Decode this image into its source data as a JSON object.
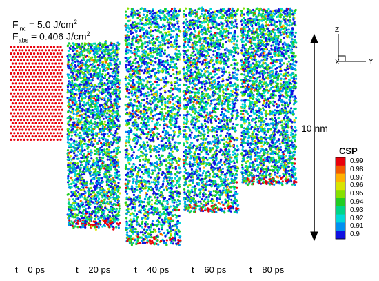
{
  "fluence": {
    "incident_symbol": "F",
    "incident_sub": "inc",
    "incident_value": " = 5.0 J/cm",
    "incident_exp": "2",
    "absorbed_symbol": "F",
    "absorbed_sub": "abs",
    "absorbed_value": " = 0.406 J/cm",
    "absorbed_exp": "2"
  },
  "snapshots": [
    {
      "label": "t =   0 ps",
      "state": "crystal"
    },
    {
      "label": "t = 20 ps",
      "state": "melted"
    },
    {
      "label": "t = 40 ps",
      "state": "melted"
    },
    {
      "label": "t = 60 ps",
      "state": "melted"
    },
    {
      "label": "t = 80 ps",
      "state": "melted"
    }
  ],
  "scale_bar": {
    "label": "10 nm"
  },
  "axes": {
    "z": "Z",
    "x": "X",
    "y": "Y"
  },
  "legend": {
    "title": "CSP",
    "entries": [
      {
        "value": "0.99",
        "color": "#e8000b"
      },
      {
        "value": "0.98",
        "color": "#f25a00"
      },
      {
        "value": "0.97",
        "color": "#ffb000"
      },
      {
        "value": "0.96",
        "color": "#d8e400"
      },
      {
        "value": "0.95",
        "color": "#86e000"
      },
      {
        "value": "0.94",
        "color": "#22cc22"
      },
      {
        "value": "0.93",
        "color": "#00d488"
      },
      {
        "value": "0.92",
        "color": "#00d8d8"
      },
      {
        "value": "0.91",
        "color": "#0090f0"
      },
      {
        "value": "0.9",
        "color": "#1010e0"
      }
    ]
  }
}
